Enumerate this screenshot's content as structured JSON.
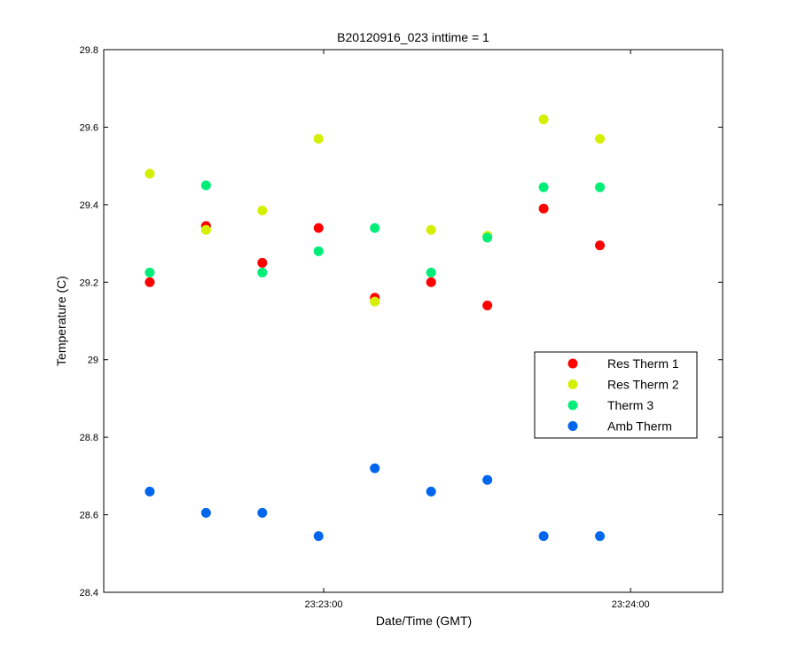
{
  "chart_data": {
    "type": "scatter",
    "title": "B20120916_023 inttime = 1",
    "xlabel": "Date/Time (GMT)",
    "ylabel": "Temperature (C)",
    "x_range": [
      "23:22:17",
      "23:24:18"
    ],
    "ylim": [
      28.4,
      29.8
    ],
    "yticks": [
      28.4,
      28.6,
      28.8,
      29,
      29.2,
      29.4,
      29.6,
      29.8
    ],
    "ytick_labels": [
      "28.4",
      "28.6",
      "28.8",
      "29",
      "29.2",
      "29.4",
      "29.6",
      "29.8"
    ],
    "xticks": [
      "23:23:00",
      "23:24:00"
    ],
    "xtick_labels": [
      "23:23:00",
      "23:24:00"
    ],
    "grid": false,
    "legend_position": "right",
    "x": [
      "23:22:26",
      "23:22:37",
      "23:22:48",
      "23:22:59",
      "23:23:10",
      "23:23:21",
      "23:23:32",
      "23:23:43",
      "23:23:54"
    ],
    "series": [
      {
        "name": "Res Therm 1",
        "color": "#ff0000",
        "values": [
          29.2,
          29.345,
          29.25,
          29.34,
          29.16,
          29.2,
          29.14,
          29.39,
          29.295
        ]
      },
      {
        "name": "Res Therm 2",
        "color": "#d4f000",
        "values": [
          29.48,
          29.335,
          29.385,
          29.57,
          29.15,
          29.335,
          29.32,
          29.62,
          29.57
        ]
      },
      {
        "name": "Therm 3",
        "color": "#00ee77",
        "values": [
          29.225,
          29.45,
          29.225,
          29.28,
          29.34,
          29.225,
          29.315,
          29.445,
          29.445
        ]
      },
      {
        "name": "Amb Therm",
        "color": "#0066ee",
        "values": [
          28.66,
          28.605,
          28.605,
          28.545,
          28.72,
          28.66,
          28.69,
          28.545,
          28.545
        ]
      }
    ]
  }
}
